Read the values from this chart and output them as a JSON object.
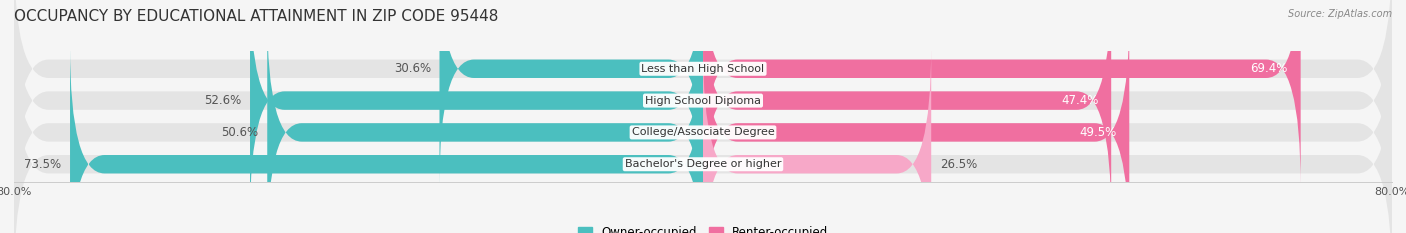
{
  "title": "OCCUPANCY BY EDUCATIONAL ATTAINMENT IN ZIP CODE 95448",
  "source": "Source: ZipAtlas.com",
  "categories": [
    "Less than High School",
    "High School Diploma",
    "College/Associate Degree",
    "Bachelor's Degree or higher"
  ],
  "owner_pct": [
    30.6,
    52.6,
    50.6,
    73.5
  ],
  "renter_pct": [
    69.4,
    47.4,
    49.5,
    26.5
  ],
  "owner_color": "#4bbfbf",
  "renter_color": "#f06fa0",
  "renter_color_light": "#f7a8c8",
  "bg_color": "#f5f5f5",
  "bar_bg_color": "#e4e4e4",
  "title_fontsize": 11,
  "label_fontsize": 8.5,
  "axis_label_fontsize": 8,
  "x_min": -80.0,
  "x_max": 80.0,
  "x_tick_labels": [
    "80.0%",
    "80.0%"
  ]
}
